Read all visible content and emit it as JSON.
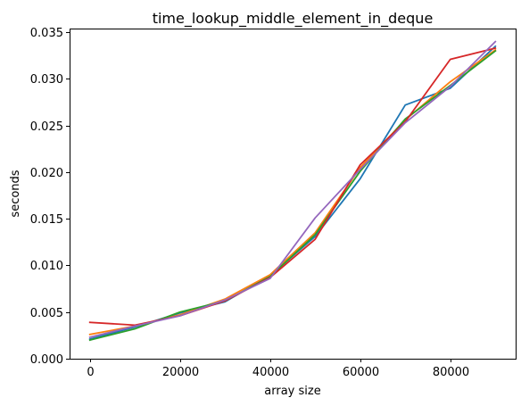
{
  "chart_data": {
    "type": "line",
    "title": "time_lookup_middle_element_in_deque",
    "xlabel": "array size",
    "ylabel": "seconds",
    "x": [
      0,
      10000,
      20000,
      30000,
      40000,
      50000,
      60000,
      70000,
      80000,
      90000
    ],
    "xlim": [
      -4500,
      94500
    ],
    "ylim": [
      0,
      0.0354
    ],
    "xticks": [
      0,
      20000,
      40000,
      60000,
      80000
    ],
    "xtick_labels": [
      "0",
      "20000",
      "40000",
      "60000",
      "80000"
    ],
    "yticks": [
      0,
      0.005,
      0.01,
      0.015,
      0.02,
      0.025,
      0.03,
      0.035
    ],
    "ytick_labels": [
      "0.000",
      "0.005",
      "0.010",
      "0.015",
      "0.020",
      "0.025",
      "0.030",
      "0.035"
    ],
    "grid": false,
    "series": [
      {
        "color": "#1f77b4",
        "values": [
          0.0021,
          0.0034,
          0.0049,
          0.0061,
          0.0089,
          0.0131,
          0.0193,
          0.0272,
          0.029,
          0.0335
        ]
      },
      {
        "color": "#ff7f0e",
        "values": [
          0.0026,
          0.0035,
          0.0047,
          0.0064,
          0.009,
          0.0135,
          0.0205,
          0.0256,
          0.0297,
          0.0331
        ]
      },
      {
        "color": "#2ca02c",
        "values": [
          0.002,
          0.0032,
          0.005,
          0.0062,
          0.0088,
          0.0133,
          0.0201,
          0.0257,
          0.0293,
          0.033
        ]
      },
      {
        "color": "#d62728",
        "values": [
          0.0039,
          0.0036,
          0.0046,
          0.0062,
          0.0087,
          0.0128,
          0.0208,
          0.0254,
          0.0321,
          0.0333
        ]
      },
      {
        "color": "#9467bd",
        "values": [
          0.0023,
          0.0035,
          0.0046,
          0.0063,
          0.0086,
          0.0151,
          0.0203,
          0.0253,
          0.0292,
          0.034
        ]
      }
    ]
  }
}
